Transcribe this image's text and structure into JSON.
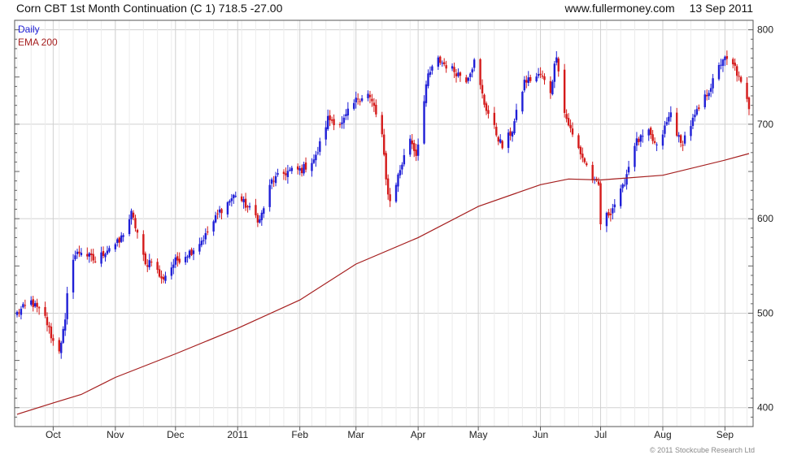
{
  "header": {
    "instrument": "Corn CBT 1st Month Continuation (C 1)",
    "last": "718.5",
    "change": "-27.00",
    "site": "www.fullermoney.com",
    "date": "13 Sep 2011"
  },
  "footer": {
    "copyright": "© 2011 Stockcube Research Ltd"
  },
  "colors": {
    "up": "#1f1fd6",
    "down": "#d41a1a",
    "ema": "#a51e1e",
    "grid": "#d0d0d0",
    "frame": "#555555"
  },
  "chart_data": {
    "type": "candlestick",
    "x_labels": [
      "Oct",
      "Nov",
      "Dec",
      "2011",
      "Feb",
      "Mar",
      "Apr",
      "May",
      "Jun",
      "Jul",
      "Aug",
      "Sep"
    ],
    "x_label_dates": [
      "2010-10-01",
      "2010-11-01",
      "2010-12-01",
      "2011-01-01",
      "2011-02-01",
      "2011-03-01",
      "2011-04-01",
      "2011-05-01",
      "2011-06-01",
      "2011-07-01",
      "2011-08-01",
      "2011-09-01"
    ],
    "x_range": [
      "2010-09-13",
      "2011-09-13"
    ],
    "ylim": [
      380,
      810
    ],
    "y_ticks": [
      400,
      500,
      600,
      700,
      800
    ],
    "y_axis_side": "right",
    "grid": true,
    "legend": {
      "position": "top-left",
      "items": [
        "Daily",
        "EMA 200"
      ]
    },
    "price_anchors": [
      [
        "2010-09-13",
        500
      ],
      [
        "2010-09-20",
        512
      ],
      [
        "2010-09-27",
        495
      ],
      [
        "2010-10-01",
        470
      ],
      [
        "2010-10-04",
        462
      ],
      [
        "2010-10-07",
        490
      ],
      [
        "2010-10-08",
        518
      ],
      [
        "2010-10-11",
        560
      ],
      [
        "2010-10-15",
        566
      ],
      [
        "2010-10-22",
        555
      ],
      [
        "2010-10-29",
        570
      ],
      [
        "2010-11-03",
        575
      ],
      [
        "2010-11-09",
        605
      ],
      [
        "2010-11-12",
        585
      ],
      [
        "2010-11-16",
        550
      ],
      [
        "2010-11-19",
        558
      ],
      [
        "2010-11-24",
        535
      ],
      [
        "2010-12-01",
        555
      ],
      [
        "2010-12-09",
        566
      ],
      [
        "2010-12-16",
        582
      ],
      [
        "2010-12-23",
        608
      ],
      [
        "2010-12-31",
        626
      ],
      [
        "2011-01-06",
        612
      ],
      [
        "2011-01-12",
        598
      ],
      [
        "2011-01-18",
        640
      ],
      [
        "2011-01-26",
        650
      ],
      [
        "2011-02-02",
        652
      ],
      [
        "2011-02-09",
        665
      ],
      [
        "2011-02-15",
        706
      ],
      [
        "2011-02-22",
        700
      ],
      [
        "2011-02-25",
        712
      ],
      [
        "2011-03-02",
        728
      ],
      [
        "2011-03-07",
        732
      ],
      [
        "2011-03-10",
        718
      ],
      [
        "2011-03-14",
        688
      ],
      [
        "2011-03-16",
        640
      ],
      [
        "2011-03-18",
        618
      ],
      [
        "2011-03-23",
        652
      ],
      [
        "2011-03-28",
        686
      ],
      [
        "2011-03-31",
        668
      ],
      [
        "2011-04-06",
        752
      ],
      [
        "2011-04-11",
        768
      ],
      [
        "2011-04-18",
        758
      ],
      [
        "2011-04-25",
        748
      ],
      [
        "2011-04-29",
        766
      ],
      [
        "2011-05-04",
        722
      ],
      [
        "2011-05-10",
        690
      ],
      [
        "2011-05-13",
        676
      ],
      [
        "2011-05-18",
        694
      ],
      [
        "2011-05-24",
        745
      ],
      [
        "2011-06-01",
        752
      ],
      [
        "2011-06-06",
        735
      ],
      [
        "2011-06-09",
        775
      ],
      [
        "2011-06-13",
        712
      ],
      [
        "2011-06-17",
        688
      ],
      [
        "2011-06-22",
        665
      ],
      [
        "2011-06-28",
        638
      ],
      [
        "2011-06-30",
        635
      ],
      [
        "2011-07-01",
        595
      ],
      [
        "2011-07-06",
        608
      ],
      [
        "2011-07-12",
        632
      ],
      [
        "2011-07-18",
        680
      ],
      [
        "2011-07-25",
        690
      ],
      [
        "2011-07-29",
        675
      ],
      [
        "2011-08-05",
        712
      ],
      [
        "2011-08-10",
        678
      ],
      [
        "2011-08-15",
        700
      ],
      [
        "2011-08-22",
        728
      ],
      [
        "2011-08-26",
        745
      ],
      [
        "2011-08-31",
        770
      ],
      [
        "2011-09-06",
        760
      ],
      [
        "2011-09-09",
        742
      ],
      [
        "2011-09-13",
        718.5
      ]
    ],
    "ema200": [
      [
        "2010-09-13",
        393
      ],
      [
        "2010-10-01",
        405
      ],
      [
        "2010-10-15",
        414
      ],
      [
        "2010-11-01",
        432
      ],
      [
        "2010-12-01",
        457
      ],
      [
        "2011-01-01",
        484
      ],
      [
        "2011-02-01",
        514
      ],
      [
        "2011-03-01",
        552
      ],
      [
        "2011-04-01",
        580
      ],
      [
        "2011-05-01",
        613
      ],
      [
        "2011-06-01",
        636
      ],
      [
        "2011-06-15",
        642
      ],
      [
        "2011-07-01",
        641
      ],
      [
        "2011-08-01",
        646
      ],
      [
        "2011-09-01",
        662
      ],
      [
        "2011-09-13",
        669
      ]
    ]
  }
}
